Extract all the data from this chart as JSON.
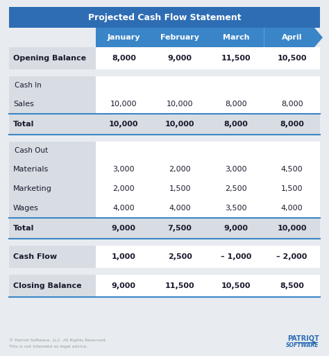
{
  "title": "Projected Cash Flow Statement",
  "title_bg": "#2e6db4",
  "title_color": "#ffffff",
  "header_bg": "#3a85c8",
  "header_color": "#ffffff",
  "months": [
    "January",
    "February",
    "March",
    "April"
  ],
  "background": "#e8ecf0",
  "white": "#ffffff",
  "light_gray": "#d8dde3",
  "rows": [
    {
      "label": "Opening Balance",
      "values": [
        "8,000",
        "9,000",
        "11,500",
        "10,500"
      ],
      "bold": true,
      "type": "highlight_label"
    },
    {
      "label": "",
      "values": [
        "",
        "",
        "",
        ""
      ],
      "bold": false,
      "type": "spacer"
    },
    {
      "label": "Cash In",
      "values": [
        "",
        "",
        "",
        ""
      ],
      "bold": false,
      "type": "section_label"
    },
    {
      "label": "Sales",
      "values": [
        "10,000",
        "10,000",
        "8,000",
        "8,000"
      ],
      "bold": false,
      "type": "normal"
    },
    {
      "label": "Total",
      "values": [
        "10,000",
        "10,000",
        "8,000",
        "8,000"
      ],
      "bold": true,
      "type": "total"
    },
    {
      "label": "",
      "values": [
        "",
        "",
        "",
        ""
      ],
      "bold": false,
      "type": "spacer"
    },
    {
      "label": "Cash Out",
      "values": [
        "",
        "",
        "",
        ""
      ],
      "bold": false,
      "type": "section_label"
    },
    {
      "label": "Materials",
      "values": [
        "3,000",
        "2,000",
        "3,000",
        "4,500"
      ],
      "bold": false,
      "type": "normal"
    },
    {
      "label": "Marketing",
      "values": [
        "2,000",
        "1,500",
        "2,500",
        "1,500"
      ],
      "bold": false,
      "type": "normal"
    },
    {
      "label": "Wages",
      "values": [
        "4,000",
        "4,000",
        "3,500",
        "4,000"
      ],
      "bold": false,
      "type": "normal"
    },
    {
      "label": "Total",
      "values": [
        "9,000",
        "7,500",
        "9,000",
        "10,000"
      ],
      "bold": true,
      "type": "total"
    },
    {
      "label": "",
      "values": [
        "",
        "",
        "",
        ""
      ],
      "bold": false,
      "type": "spacer"
    },
    {
      "label": "Cash Flow",
      "values": [
        "1,000",
        "2,500",
        "– 1,000",
        "– 2,000"
      ],
      "bold": true,
      "type": "highlight_label"
    },
    {
      "label": "",
      "values": [
        "",
        "",
        "",
        ""
      ],
      "bold": false,
      "type": "spacer"
    },
    {
      "label": "Closing Balance",
      "values": [
        "9,000",
        "11,500",
        "10,500",
        "8,500"
      ],
      "bold": true,
      "type": "highlight_label"
    }
  ],
  "footer_text1": "© Patriot Software, LLC. All Rights Reserved.",
  "footer_text2": "This is not intended as legal advice.",
  "footer_color": "#999999",
  "patriot_color": "#2e6db4"
}
